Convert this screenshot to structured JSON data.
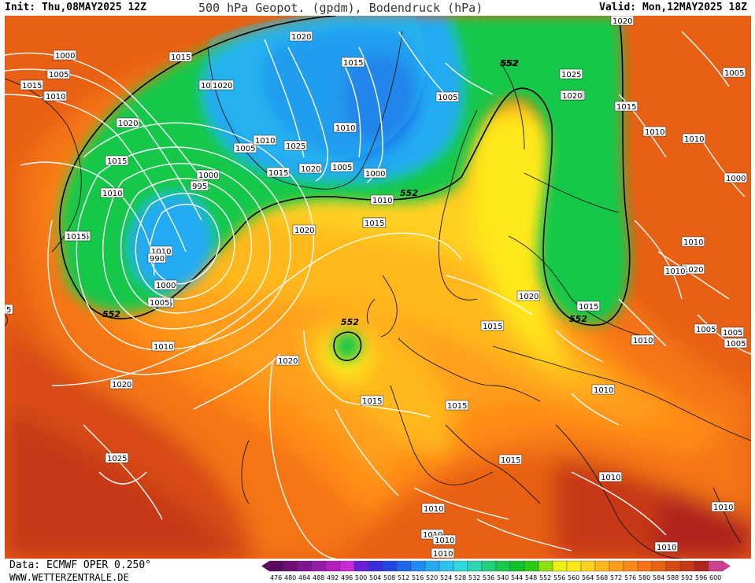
{
  "header": {
    "init": "Init: Thu,08MAY2025 12Z",
    "title": "500 hPa Geopot. (gpdm), Bodendruck (hPa)",
    "valid": "Valid: Mon,12MAY2025 18Z"
  },
  "footer": {
    "data_source": "Data: ECMWF OPER 0.250°",
    "website": "WWW.WETTERZENTRALE.DE"
  },
  "legend": {
    "values": [
      "476",
      "480",
      "484",
      "488",
      "492",
      "496",
      "500",
      "504",
      "508",
      "512",
      "516",
      "520",
      "524",
      "528",
      "532",
      "536",
      "540",
      "544",
      "548",
      "552",
      "556",
      "560",
      "564",
      "568",
      "572",
      "576",
      "580",
      "584",
      "588",
      "592",
      "596",
      "600"
    ],
    "colors": [
      "#5a0a5e",
      "#6e0f78",
      "#7e1490",
      "#9a1aa8",
      "#b41fc0",
      "#c92ad8",
      "#6a1fd6",
      "#3a2cd8",
      "#2446e0",
      "#1e66ea",
      "#1f8af0",
      "#24aaf2",
      "#2ac4ee",
      "#30d8e0",
      "#2cd6b2",
      "#22d07c",
      "#18c84a",
      "#0fc22a",
      "#28cc14",
      "#8ee010",
      "#eef014",
      "#ffe81c",
      "#ffd020",
      "#ffb81e",
      "#ff9e1c",
      "#ff8a18",
      "#f47414",
      "#e86014",
      "#d84a14",
      "#c63818",
      "#b0241c",
      "#d04090"
    ]
  },
  "map": {
    "pressure_labels": [
      "1020",
      "1000",
      "1005",
      "1010",
      "1015",
      "1015",
      "1020",
      "1010",
      "1020",
      "1015",
      "1015",
      "1025",
      "1015",
      "1020",
      "1005",
      "1020",
      "1010",
      "1005",
      "1020",
      "1025",
      "1010",
      "1015",
      "1020",
      "1000",
      "1005",
      "1000",
      "995",
      "1010",
      "1015",
      "1005",
      "1010",
      "1015",
      "1015",
      "1010",
      "990",
      "1000",
      "1005",
      "1010",
      "1020",
      "1015",
      "1010",
      "1020",
      "1015",
      "1010",
      "1020",
      "1015",
      "1020",
      "1010",
      "1005",
      "1010",
      "1010",
      "1005",
      "1010",
      "1010",
      "1020",
      "1025",
      "1015",
      "1015",
      "1010",
      "1010",
      "1010",
      "1010",
      "1010",
      "1010",
      "1015",
      "1020",
      "5",
      "1000",
      "1005",
      "1005"
    ],
    "z552_labels": [
      "552",
      "552",
      "552",
      "552",
      "552",
      "552"
    ],
    "colors": {
      "low_blue": "#2cc0ee",
      "deep_blue": "#1f8af0",
      "green": "#18c84a",
      "yellow": "#ffe81c",
      "orange": "#ff9e1c",
      "red": "#d84a14",
      "dark_red": "#b0241c"
    }
  }
}
